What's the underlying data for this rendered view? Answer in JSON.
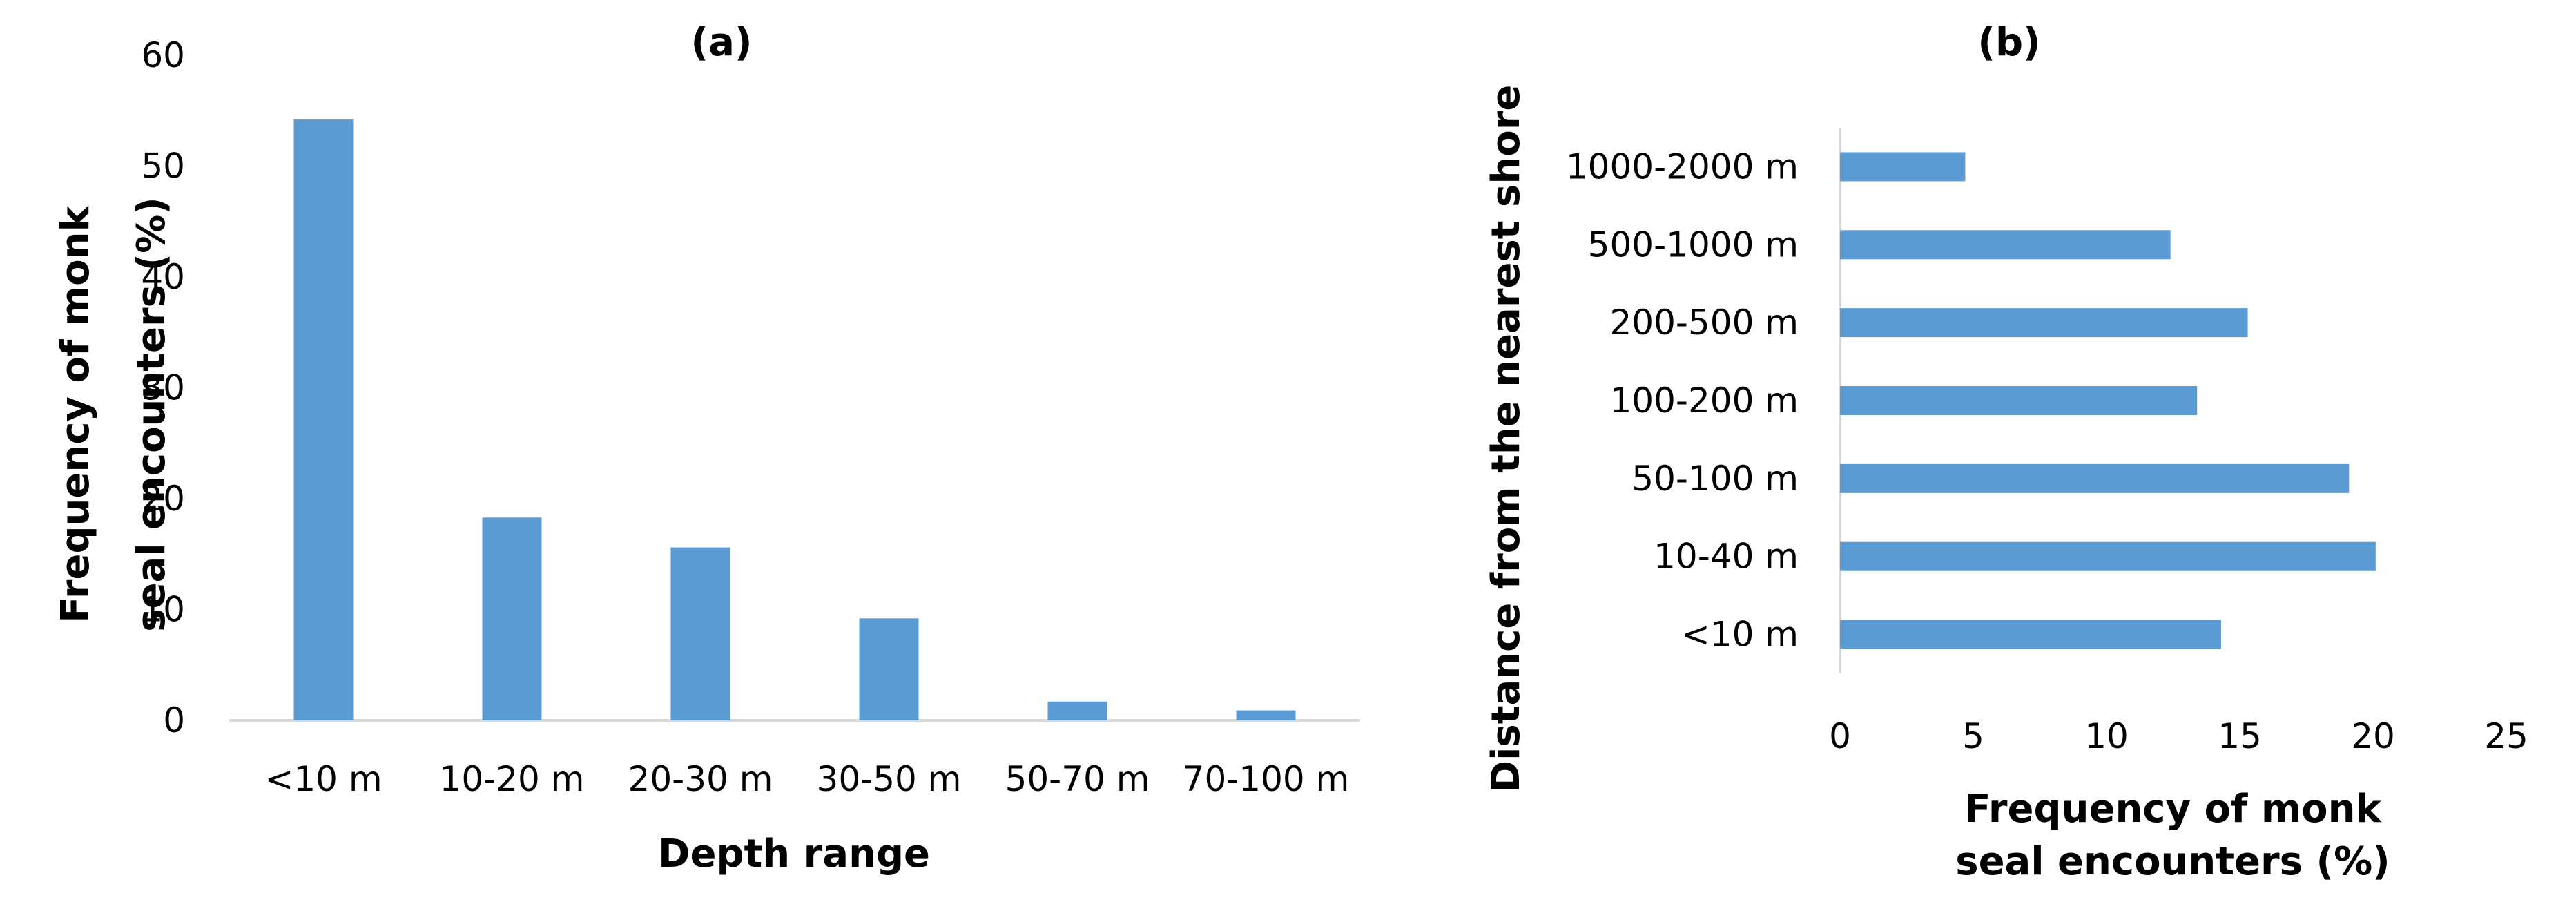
{
  "chart_data": [
    {
      "type": "bar",
      "orientation": "vertical",
      "title": "(a)",
      "xlabel": "Depth range",
      "ylabel": "Frequency of monk seal encounters (%)",
      "categories": [
        "<10 m",
        "10-20 m",
        "20-30 m",
        "30-50 m",
        "50-70 m",
        "70-100 m"
      ],
      "values": [
        54.2,
        18.3,
        15.6,
        9.2,
        1.7,
        0.9
      ],
      "ylim": [
        0,
        60
      ],
      "yticks": [
        "0",
        "10",
        "20",
        "30",
        "40",
        "50",
        "60"
      ],
      "bar_color": "#5b9bd5",
      "grid": false
    },
    {
      "type": "bar",
      "orientation": "horizontal",
      "title": "(b)",
      "xlabel": "Frequency of monk seal encounters (%)",
      "ylabel": "Distance from the nearest shore",
      "categories": [
        "<10 m",
        "10-40 m",
        "50-100 m",
        "100-200 m",
        "200-500 m",
        "500-1000 m",
        "1000-2000 m"
      ],
      "values": [
        14.3,
        20.1,
        19.1,
        13.4,
        15.3,
        12.4,
        4.7
      ],
      "xlim": [
        0,
        25
      ],
      "xticks": [
        "0",
        "5",
        "10",
        "15",
        "20",
        "25"
      ],
      "bar_color": "#5b9bd5",
      "grid": false
    }
  ]
}
